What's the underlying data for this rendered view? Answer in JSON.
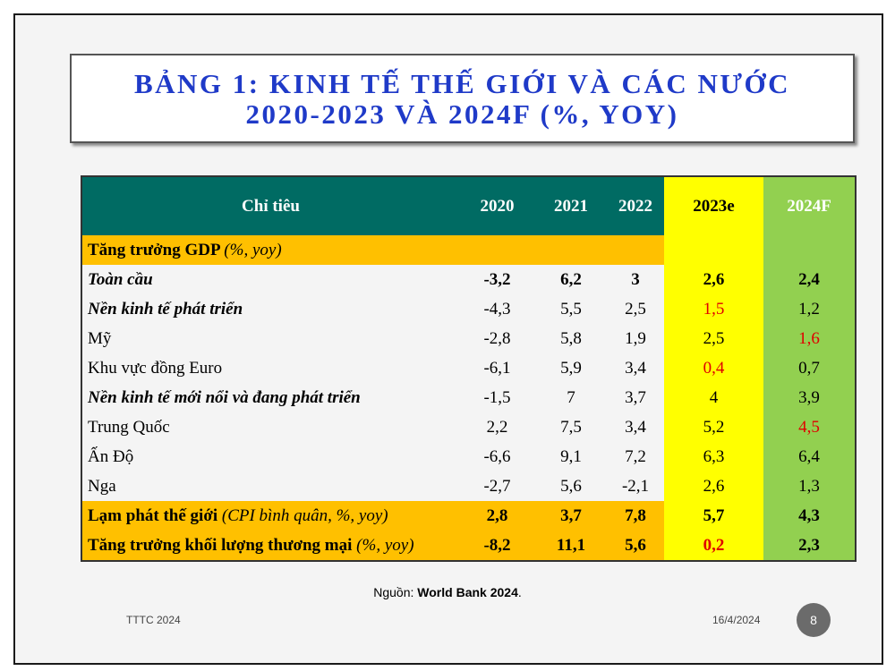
{
  "title": {
    "line1": "BẢNG 1: KINH TẾ THẾ GIỚI VÀ CÁC NƯỚC",
    "line2": "2020-2023 VÀ 2024F (%, YOY)"
  },
  "table": {
    "headers": [
      "Chỉ tiêu",
      "2020",
      "2021",
      "2022",
      "2023e",
      "2024F"
    ],
    "rows": [
      {
        "label": "Tăng trưởng GDP",
        "note": "(%, yoy)",
        "style": "section",
        "values": [
          "",
          "",
          "",
          "",
          ""
        ],
        "red": []
      },
      {
        "label": "Toàn cầu",
        "note": "",
        "style": "bold-italic-allbold",
        "values": [
          "-3,2",
          "6,2",
          "3",
          "2,6",
          "2,4"
        ],
        "red": []
      },
      {
        "label": "Nền kinh tế phát triển",
        "note": "",
        "style": "bold-italic",
        "values": [
          "-4,3",
          "5,5",
          "2,5",
          "1,5",
          "1,2"
        ],
        "red": [
          3
        ]
      },
      {
        "label": "Mỹ",
        "note": "",
        "style": "regular",
        "values": [
          "-2,8",
          "5,8",
          "1,9",
          "2,5",
          "1,6"
        ],
        "red": [
          4
        ]
      },
      {
        "label": "Khu vực đồng Euro",
        "note": "",
        "style": "regular",
        "values": [
          "-6,1",
          "5,9",
          "3,4",
          "0,4",
          "0,7"
        ],
        "red": [
          3
        ]
      },
      {
        "label": "Nền kinh tế mới nổi và đang phát triển",
        "note": "",
        "style": "bold-italic",
        "values": [
          "-1,5",
          "7",
          "3,7",
          "4",
          "3,9"
        ],
        "red": []
      },
      {
        "label": "Trung Quốc",
        "note": "",
        "style": "regular",
        "values": [
          "2,2",
          "7,5",
          "3,4",
          "5,2",
          "4,5"
        ],
        "red": [
          4
        ]
      },
      {
        "label": "Ấn Độ",
        "note": "",
        "style": "regular",
        "values": [
          "-6,6",
          "9,1",
          "7,2",
          "6,3",
          "6,4"
        ],
        "red": []
      },
      {
        "label": "Nga",
        "note": "",
        "style": "regular",
        "values": [
          "-2,7",
          "5,6",
          "-2,1",
          "2,6",
          "1,3"
        ],
        "red": []
      },
      {
        "label": "Lạm phát thế giới",
        "note": "(CPI bình quân, %, yoy)",
        "style": "section",
        "values": [
          "2,8",
          "3,7",
          "7,8",
          "5,7",
          "4,3"
        ],
        "red": []
      },
      {
        "label": "Tăng trưởng khối lượng thương mại",
        "note": "(%, yoy)",
        "style": "section",
        "values": [
          "-8,2",
          "11,1",
          "5,6",
          "0,2",
          "2,3"
        ],
        "red": [
          3
        ]
      }
    ]
  },
  "source": {
    "prefix": "Nguồn: ",
    "name": "World Bank 2024",
    "suffix": "."
  },
  "footer": {
    "left": "TTTC 2024",
    "date": "16/4/2024",
    "page": "8"
  },
  "colors": {
    "header": "#006b63",
    "section": "#ffc000",
    "estimate": "#ffff00",
    "forecast": "#92d050",
    "highlight": "#e00000",
    "title": "#1f3ac8"
  }
}
